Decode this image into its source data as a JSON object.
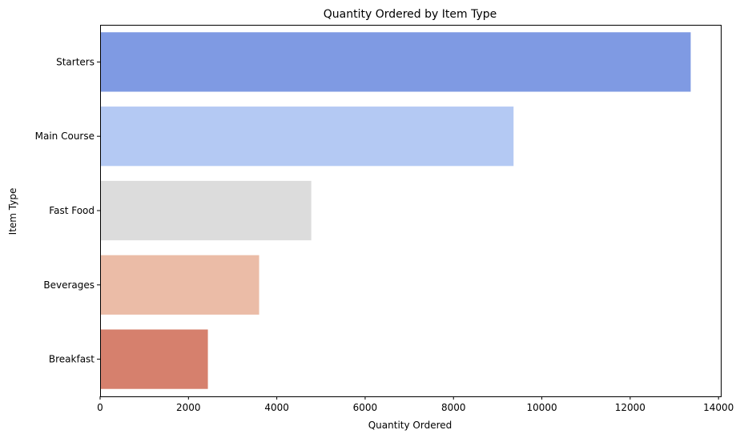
{
  "chart_data": {
    "type": "bar",
    "orientation": "horizontal",
    "title": "Quantity Ordered by Item Type",
    "xlabel": "Quantity Ordered",
    "ylabel": "Item Type",
    "categories": [
      "Starters",
      "Main Course",
      "Fast Food",
      "Beverages",
      "Breakfast"
    ],
    "values": [
      13370,
      9360,
      4780,
      3600,
      2440
    ],
    "colors": [
      "#7f9ae3",
      "#b4c9f3",
      "#dcdcdc",
      "#ebbca7",
      "#d6806d"
    ],
    "xlim": [
      0,
      14000
    ],
    "xticks": [
      0,
      2000,
      4000,
      6000,
      8000,
      10000,
      12000,
      14000
    ],
    "grid": false,
    "legend": "none"
  }
}
